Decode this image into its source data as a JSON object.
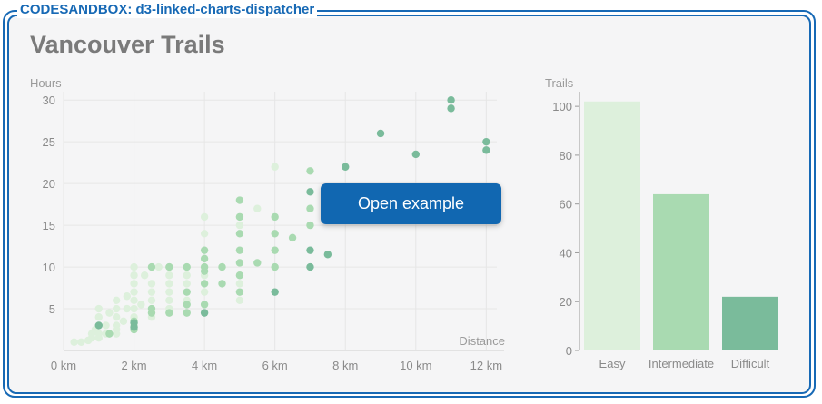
{
  "frame": {
    "label": "CODESANDBOX: d3-linked-charts-dispatcher",
    "accent": "#1769b5"
  },
  "page": {
    "title": "Vancouver Trails"
  },
  "button": {
    "label": "Open example",
    "color": "#1167b1"
  },
  "chart_data": [
    {
      "type": "scatter",
      "ylabel": "Hours",
      "xlabel": "Distance",
      "xlim": [
        0,
        12.3
      ],
      "ylim": [
        0,
        31
      ],
      "xticks": [
        0,
        2,
        4,
        6,
        8,
        10,
        12
      ],
      "xtick_labels": [
        "0 km",
        "2 km",
        "4 km",
        "6 km",
        "8 km",
        "10 km",
        "12 km"
      ],
      "yticks": [
        5,
        10,
        15,
        20,
        25,
        30
      ],
      "ytick_labels": [
        "5",
        "10",
        "15",
        "20",
        "25",
        "30"
      ],
      "grid": true,
      "colors": {
        "Easy": "#ddf0dc",
        "Intermediate": "#a9dab1",
        "Difficult": "#7abb9b"
      },
      "series": [
        {
          "name": "Easy",
          "points": [
            [
              0.3,
              1.0
            ],
            [
              0.5,
              1.0
            ],
            [
              0.7,
              1.2
            ],
            [
              0.8,
              1.5
            ],
            [
              0.8,
              2.0
            ],
            [
              0.9,
              2.5
            ],
            [
              1.0,
              1.5
            ],
            [
              1.0,
              2.0
            ],
            [
              1.0,
              3.0
            ],
            [
              1.0,
              4.0
            ],
            [
              1.0,
              5.0
            ],
            [
              1.2,
              2.0
            ],
            [
              1.2,
              3.0
            ],
            [
              1.3,
              4.5
            ],
            [
              1.5,
              2.0
            ],
            [
              1.5,
              2.5
            ],
            [
              1.5,
              3.0
            ],
            [
              1.5,
              4.0
            ],
            [
              1.5,
              5.0
            ],
            [
              1.5,
              6.0
            ],
            [
              1.7,
              3.5
            ],
            [
              1.8,
              5.0
            ],
            [
              1.8,
              6.5
            ],
            [
              2.0,
              3.0
            ],
            [
              2.0,
              4.0
            ],
            [
              2.0,
              5.0
            ],
            [
              2.0,
              6.0
            ],
            [
              2.0,
              7.0
            ],
            [
              2.0,
              8.0
            ],
            [
              2.0,
              9.0
            ],
            [
              2.0,
              10.0
            ],
            [
              2.2,
              5.5
            ],
            [
              2.3,
              9.0
            ],
            [
              2.5,
              4.0
            ],
            [
              2.5,
              6.0
            ],
            [
              2.5,
              7.0
            ],
            [
              2.5,
              8.0
            ],
            [
              2.7,
              10.0
            ],
            [
              3.0,
              5.0
            ],
            [
              3.0,
              6.0
            ],
            [
              3.0,
              7.0
            ],
            [
              3.0,
              8.0
            ],
            [
              3.0,
              9.0
            ],
            [
              3.0,
              10.0
            ],
            [
              3.5,
              6.0
            ],
            [
              3.5,
              8.0
            ],
            [
              3.5,
              9.0
            ],
            [
              4.0,
              7.0
            ],
            [
              4.0,
              9.0
            ],
            [
              4.0,
              14.0
            ],
            [
              4.0,
              16.0
            ],
            [
              4.5,
              10.0
            ],
            [
              5.0,
              6.0
            ],
            [
              5.0,
              8.0
            ],
            [
              5.0,
              15.0
            ],
            [
              5.0,
              16.0
            ],
            [
              5.5,
              17.0
            ],
            [
              6.0,
              12.0
            ],
            [
              6.0,
              22.0
            ]
          ]
        },
        {
          "name": "Intermediate",
          "points": [
            [
              1.3,
              2.0
            ],
            [
              2.0,
              2.5
            ],
            [
              2.0,
              3.5
            ],
            [
              2.5,
              4.5
            ],
            [
              2.5,
              5.0
            ],
            [
              2.5,
              10.0
            ],
            [
              3.0,
              4.5
            ],
            [
              3.0,
              10.0
            ],
            [
              3.5,
              4.5
            ],
            [
              3.5,
              5.5
            ],
            [
              3.5,
              7.0
            ],
            [
              3.5,
              10.0
            ],
            [
              4.0,
              5.5
            ],
            [
              4.0,
              8.0
            ],
            [
              4.0,
              9.5
            ],
            [
              4.0,
              10.0
            ],
            [
              4.0,
              11.0
            ],
            [
              4.0,
              12.0
            ],
            [
              4.5,
              8.0
            ],
            [
              4.5,
              10.0
            ],
            [
              5.0,
              7.0
            ],
            [
              5.0,
              9.0
            ],
            [
              5.0,
              10.5
            ],
            [
              5.0,
              12.0
            ],
            [
              5.0,
              14.0
            ],
            [
              5.0,
              16.0
            ],
            [
              5.0,
              18.0
            ],
            [
              5.5,
              10.5
            ],
            [
              6.0,
              10.0
            ],
            [
              6.0,
              12.0
            ],
            [
              6.0,
              14.0
            ],
            [
              6.0,
              16.0
            ],
            [
              6.5,
              13.5
            ],
            [
              7.0,
              15.0
            ],
            [
              7.0,
              17.0
            ],
            [
              7.0,
              21.5
            ]
          ]
        },
        {
          "name": "Difficult",
          "points": [
            [
              1.0,
              3.0
            ],
            [
              2.0,
              2.8
            ],
            [
              2.0,
              3.3
            ],
            [
              4.0,
              4.5
            ],
            [
              6.0,
              7.0
            ],
            [
              7.0,
              10.0
            ],
            [
              7.0,
              12.0
            ],
            [
              7.0,
              19.0
            ],
            [
              7.5,
              11.5
            ],
            [
              8.0,
              22.0
            ],
            [
              9.0,
              26.0
            ],
            [
              10.0,
              23.5
            ],
            [
              11.0,
              29.0
            ],
            [
              11.0,
              30.0
            ],
            [
              12.0,
              24.0
            ],
            [
              12.0,
              25.0
            ]
          ]
        }
      ]
    },
    {
      "type": "bar",
      "ylabel": "Trails",
      "categories": [
        "Easy",
        "Intermediate",
        "Difficult"
      ],
      "values": [
        102,
        64,
        22
      ],
      "colors": [
        "#ddf0dc",
        "#a9dab1",
        "#7abb9b"
      ],
      "ylim": [
        0,
        106
      ],
      "yticks": [
        0,
        20,
        40,
        60,
        80,
        100
      ],
      "ytick_labels": [
        "0",
        "20",
        "40",
        "60",
        "80",
        "100"
      ]
    }
  ]
}
